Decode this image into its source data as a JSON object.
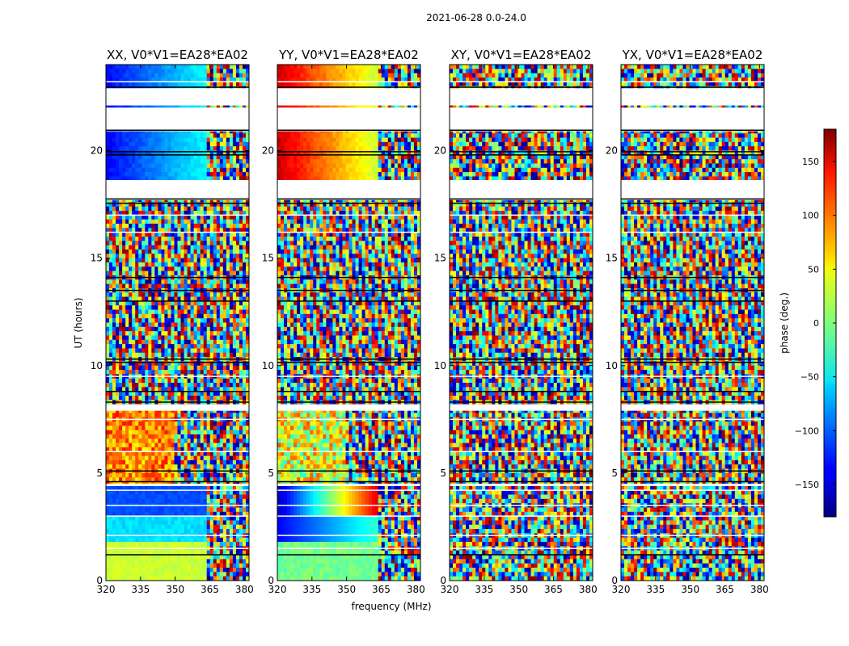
{
  "figure_title": "2021-06-28 0.0-24.0",
  "chart_data": {
    "type": "heatmap",
    "title": "2021-06-28 0.0-24.0",
    "xlabel": "frequency (MHz)",
    "ylabel": "UT (hours)",
    "xlim": [
      320,
      382
    ],
    "ylim": [
      0,
      24
    ],
    "xticks": [
      320,
      335,
      350,
      365,
      380
    ],
    "yticks": [
      0,
      5,
      10,
      15,
      20
    ],
    "xtick_labels": [
      "320",
      "335",
      "350",
      "365",
      "380"
    ],
    "ytick_labels": [
      "0",
      "5",
      "10",
      "15",
      "20"
    ],
    "panels": [
      {
        "title": "XX, V0*V1=EA28*EA02",
        "pol": "XX",
        "coherent": true
      },
      {
        "title": "YY, V0*V1=EA28*EA02",
        "pol": "YY",
        "coherent": true
      },
      {
        "title": "XY, V0*V1=EA28*EA02",
        "pol": "XY",
        "coherent": false
      },
      {
        "title": "YX, V0*V1=EA28*EA02",
        "pol": "YX",
        "coherent": false
      }
    ],
    "flagged_gaps_hours": [
      [
        22.1,
        22.9
      ],
      [
        20.9,
        22.0
      ],
      [
        17.7,
        18.6
      ],
      [
        7.9,
        8.2
      ],
      [
        4.4,
        4.5
      ]
    ],
    "colorbar": {
      "label": "phase (deg.)",
      "range": [
        -180,
        180
      ],
      "ticks": [
        150,
        100,
        50,
        0,
        -50,
        -100,
        -150
      ],
      "tick_labels": [
        "150",
        "100",
        "50",
        "0",
        "−50",
        "−100",
        "−150"
      ],
      "colormap": "jet"
    }
  }
}
